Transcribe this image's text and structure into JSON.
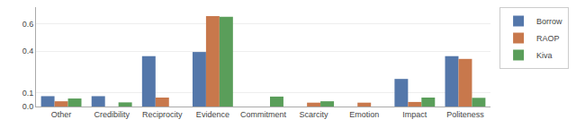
{
  "chart_data": {
    "type": "bar",
    "categories": [
      "Other",
      "Credibility",
      "Reciprocity",
      "Evidence",
      "Commitment",
      "Scarcity",
      "Emotion",
      "Impact",
      "Politeness"
    ],
    "series": [
      {
        "name": "Borrow",
        "color": "#5477aa",
        "values": [
          0.075,
          0.075,
          0.365,
          0.395,
          0.0,
          0.0,
          0.0,
          0.2,
          0.365
        ]
      },
      {
        "name": "RAOP",
        "color": "#c8784c",
        "values": [
          0.038,
          0.0,
          0.065,
          0.655,
          0.0,
          0.028,
          0.028,
          0.033,
          0.345
        ]
      },
      {
        "name": "Kiva",
        "color": "#5a9e5a",
        "values": [
          0.058,
          0.03,
          0.0,
          0.65,
          0.072,
          0.038,
          0.0,
          0.065,
          0.063
        ]
      }
    ],
    "ylim": [
      0,
      0.72
    ],
    "yticks": [
      {
        "value": 0.0,
        "label": "0.0"
      },
      0.1,
      0.4,
      0.6
    ],
    "grid": true,
    "legend": "upper right"
  }
}
